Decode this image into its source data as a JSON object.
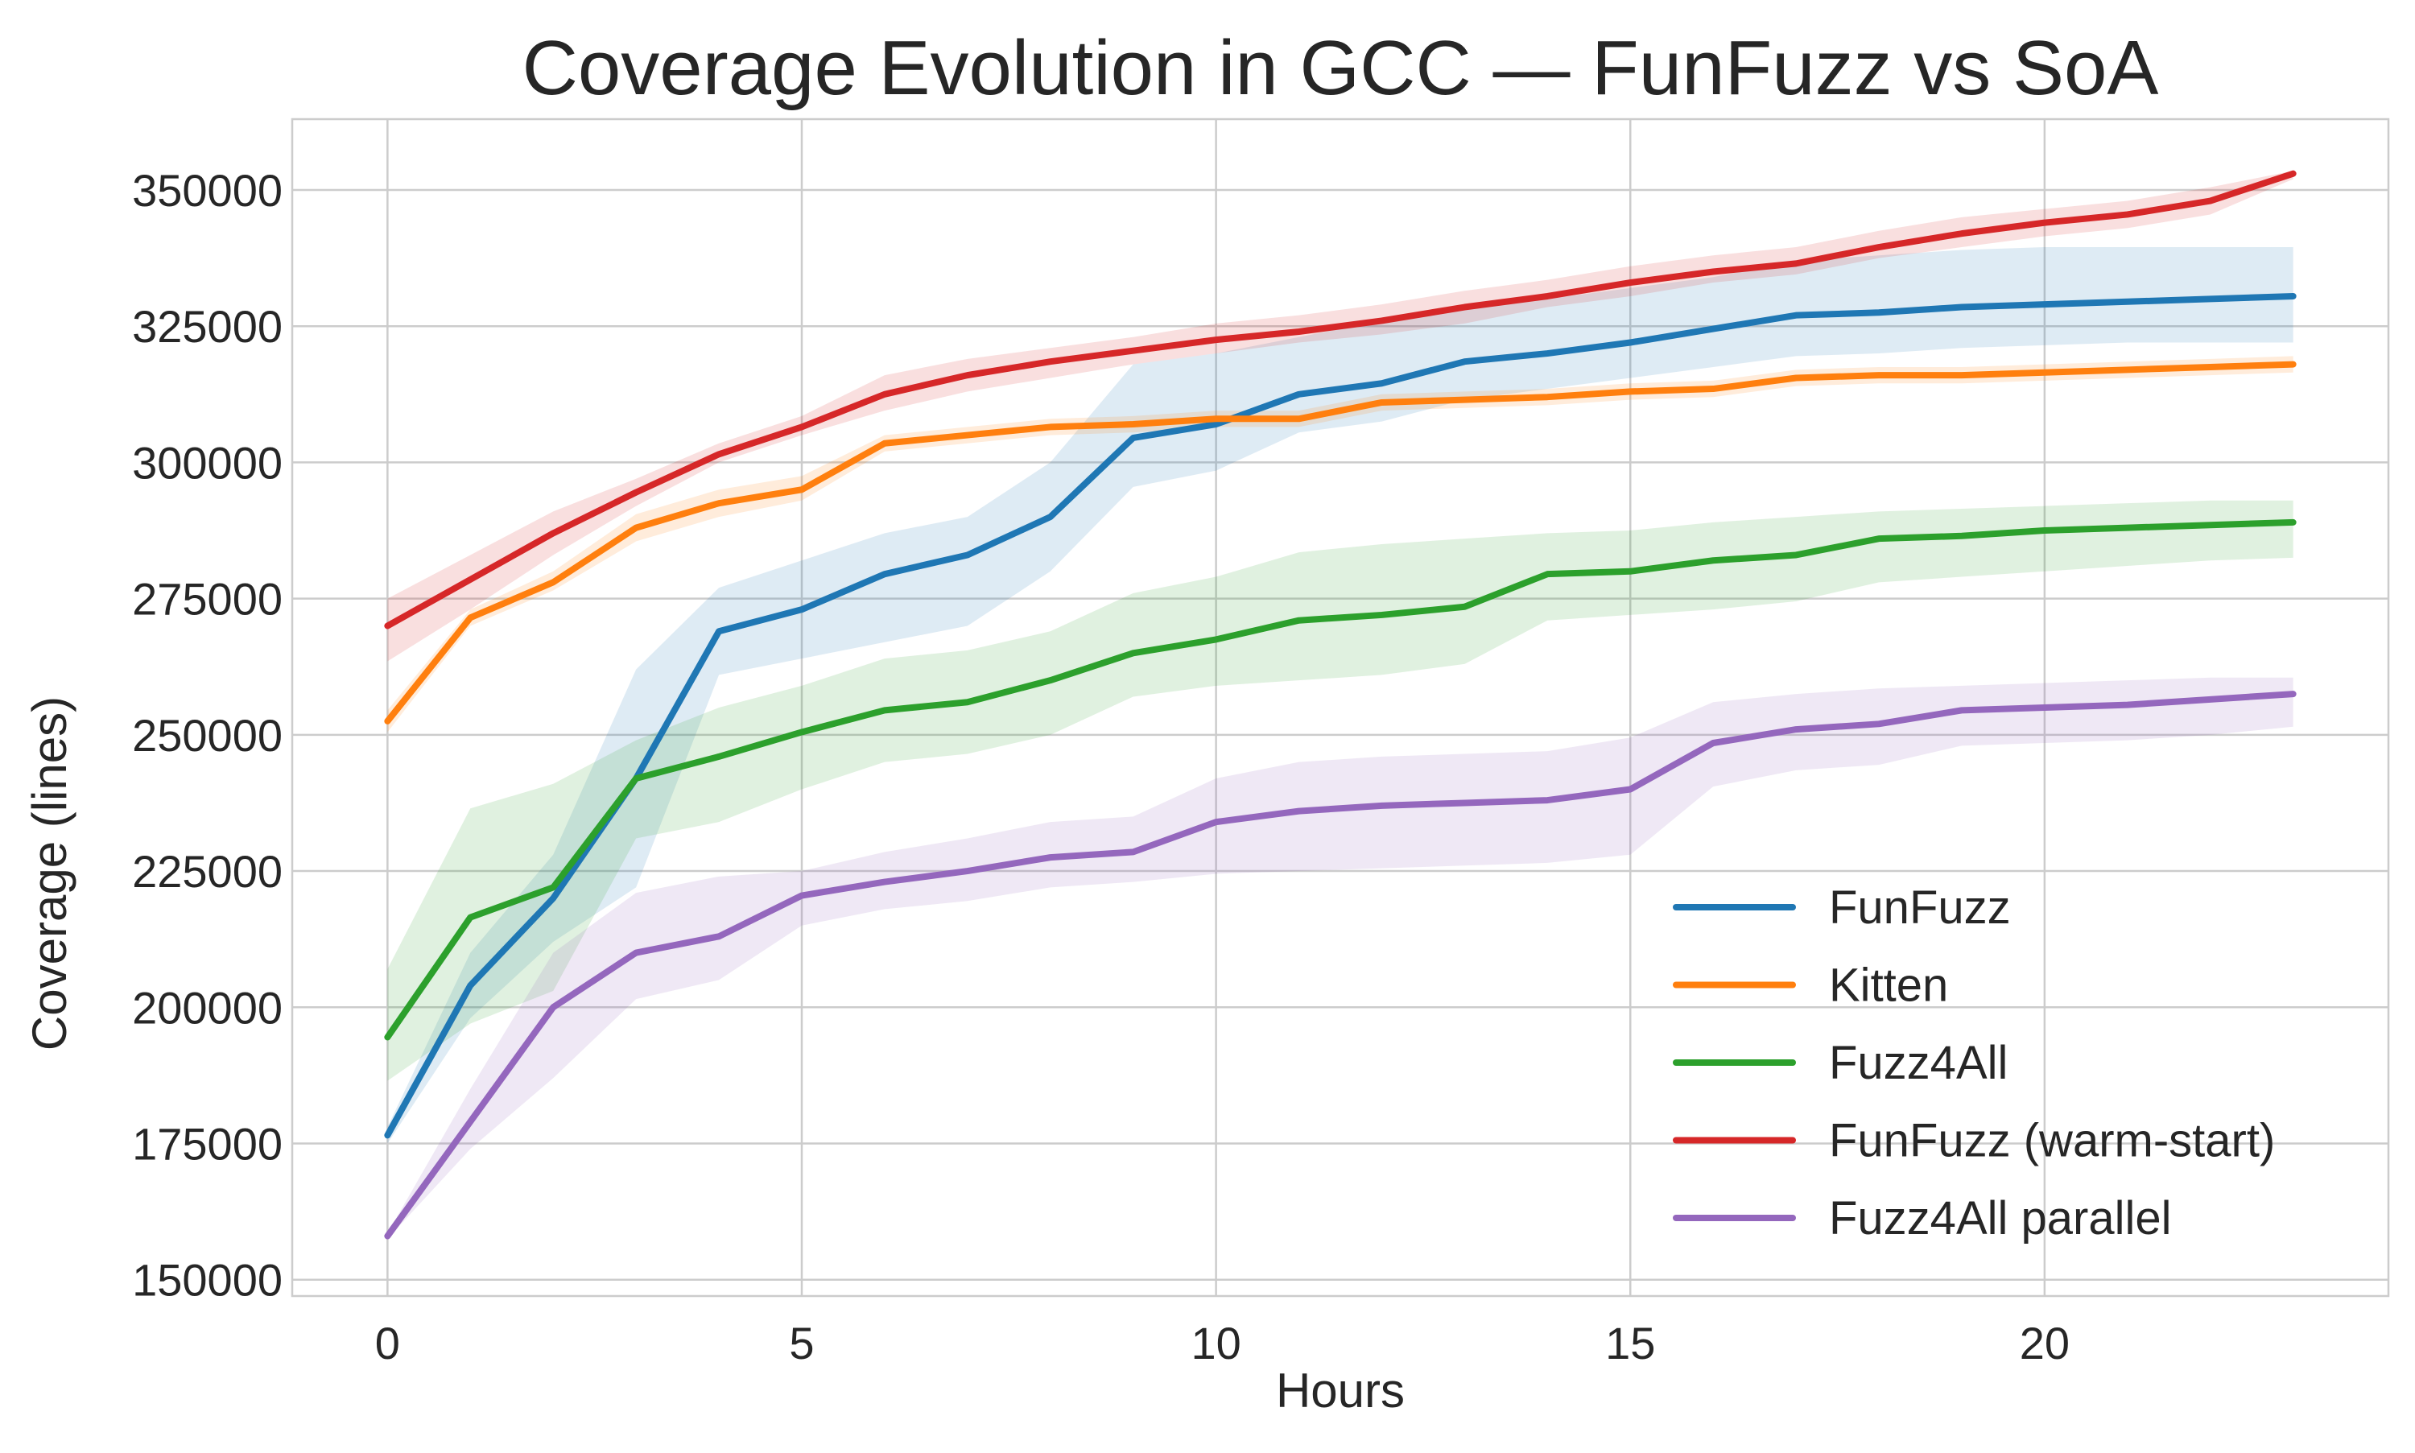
{
  "chart_data": {
    "type": "line",
    "title": "Coverage Evolution in GCC — FunFuzz vs SoA",
    "xlabel": "Hours",
    "ylabel": "Coverage (lines)",
    "xlim": [
      -1.15,
      24.15
    ],
    "ylim": [
      147000,
      363000
    ],
    "xticks": [
      0,
      5,
      10,
      15,
      20
    ],
    "yticks": [
      150000,
      175000,
      200000,
      225000,
      250000,
      275000,
      300000,
      325000,
      350000
    ],
    "grid": true,
    "legend_position": "lower-right",
    "x": [
      0,
      1,
      2,
      3,
      4,
      5,
      6,
      7,
      8,
      9,
      10,
      11,
      12,
      13,
      14,
      15,
      16,
      17,
      18,
      19,
      20,
      21,
      22,
      23
    ],
    "series": [
      {
        "name": "FunFuzz",
        "color": "#1f77b4",
        "values": [
          176500,
          204000,
          220000,
          242000,
          269000,
          273000,
          279500,
          283000,
          290000,
          304500,
          307000,
          312500,
          314500,
          318500,
          320000,
          322000,
          324500,
          327000,
          327500,
          328500,
          329000,
          329500,
          330000,
          330500
        ],
        "lower": [
          175000,
          198000,
          212000,
          222000,
          261000,
          264000,
          267000,
          270000,
          280000,
          295500,
          298500,
          305500,
          307500,
          311500,
          313500,
          315500,
          317500,
          319500,
          320000,
          321000,
          321500,
          322000,
          322000,
          322000
        ],
        "upper": [
          178000,
          210000,
          228000,
          262000,
          277000,
          282000,
          287000,
          290000,
          300000,
          318000,
          320000,
          323000,
          326000,
          329000,
          330000,
          332000,
          334000,
          337000,
          338000,
          339000,
          339500,
          339500,
          339500,
          339500
        ]
      },
      {
        "name": "Kitten",
        "color": "#ff7f0e",
        "values": [
          252500,
          271500,
          278000,
          288000,
          292500,
          295000,
          303500,
          305000,
          306500,
          307000,
          308000,
          308000,
          311000,
          311500,
          312000,
          313000,
          313500,
          315500,
          316000,
          316000,
          316500,
          317000,
          317500,
          318000
        ],
        "lower": [
          250500,
          270000,
          276500,
          285500,
          290000,
          293000,
          302000,
          303500,
          305000,
          305500,
          306500,
          306500,
          309500,
          310000,
          310500,
          311500,
          312000,
          314000,
          314500,
          314500,
          315000,
          315500,
          316000,
          316500
        ],
        "upper": [
          254500,
          273000,
          280000,
          290500,
          295000,
          297500,
          305000,
          306500,
          308000,
          308500,
          309500,
          309500,
          312500,
          313000,
          313500,
          314500,
          315000,
          317000,
          317500,
          317500,
          318000,
          318500,
          319000,
          319500
        ]
      },
      {
        "name": "Fuzz4All",
        "color": "#2ca02c",
        "values": [
          194500,
          216500,
          222000,
          242000,
          246000,
          250500,
          254500,
          256000,
          260000,
          265000,
          267500,
          271000,
          272000,
          273500,
          279500,
          280000,
          282000,
          283000,
          286000,
          286500,
          287500,
          288000,
          288500,
          289000
        ],
        "lower": [
          186500,
          197000,
          203000,
          231000,
          234000,
          240000,
          245000,
          246500,
          250000,
          257000,
          259000,
          260000,
          261000,
          263000,
          271000,
          272000,
          273000,
          274500,
          278000,
          279000,
          280000,
          281000,
          282000,
          282500
        ],
        "upper": [
          207000,
          236500,
          241000,
          249000,
          255000,
          259000,
          264000,
          265500,
          269000,
          276000,
          279000,
          283500,
          285000,
          286000,
          287000,
          287500,
          289000,
          290000,
          291000,
          291500,
          292000,
          292500,
          293000,
          293000
        ]
      },
      {
        "name": "FunFuzz (warm-start)",
        "color": "#d62728",
        "values": [
          270000,
          278500,
          287000,
          294500,
          301500,
          306500,
          312500,
          316000,
          318500,
          320500,
          322500,
          324000,
          326000,
          328500,
          330500,
          333000,
          335000,
          336500,
          339500,
          342000,
          344000,
          345500,
          348000,
          353000
        ],
        "lower": [
          263500,
          273000,
          283000,
          292000,
          300000,
          305000,
          309500,
          313000,
          315500,
          318000,
          320000,
          322000,
          323500,
          325500,
          328500,
          330500,
          333000,
          334500,
          337500,
          339500,
          341500,
          343000,
          345500,
          352000
        ],
        "upper": [
          275000,
          283000,
          291000,
          297000,
          303500,
          308500,
          316000,
          319000,
          321000,
          323000,
          325500,
          327000,
          329000,
          331500,
          333500,
          336000,
          338000,
          339500,
          342500,
          345000,
          346500,
          348000,
          350500,
          353500
        ]
      },
      {
        "name": "Fuzz4All parallel",
        "color": "#9467bd",
        "values": [
          158000,
          179000,
          200000,
          210000,
          213000,
          220500,
          223000,
          225000,
          227500,
          228500,
          234000,
          236000,
          237000,
          237500,
          238000,
          240000,
          248500,
          251000,
          252000,
          254500,
          255000,
          255500,
          256500,
          257500
        ],
        "lower": [
          157500,
          174000,
          187000,
          201500,
          205000,
          215000,
          218000,
          219500,
          222000,
          223000,
          224500,
          225000,
          225500,
          226000,
          226500,
          228000,
          240500,
          243500,
          244500,
          248000,
          248500,
          249000,
          250000,
          251500
        ],
        "upper": [
          158500,
          185000,
          210000,
          221000,
          224000,
          225000,
          228500,
          231000,
          234000,
          235000,
          242000,
          245000,
          246000,
          246500,
          247000,
          249500,
          256000,
          257500,
          258500,
          259000,
          259500,
          260000,
          260500,
          260500
        ]
      }
    ]
  }
}
